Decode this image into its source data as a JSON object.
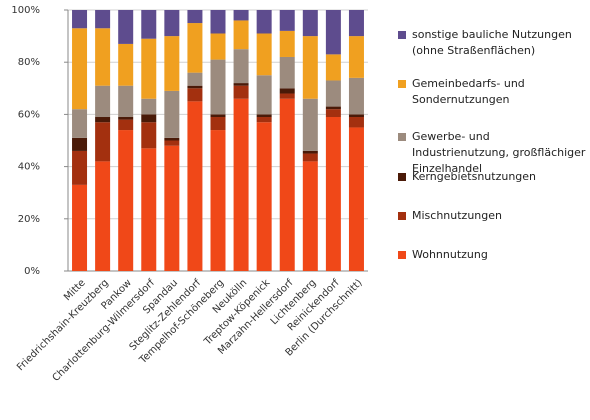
{
  "chart_data": {
    "type": "stacked-bar",
    "categories": [
      "Mitte",
      "Friedrichshain-Kreuzberg",
      "Pankow",
      "Charlottenburg-Wilmersdorf",
      "Spandau",
      "Steglitz-Zehlendorf",
      "Tempelhof-Schöneberg",
      "Neukölln",
      "Treptow-Köpenick",
      "Marzahn-Hellersdorf",
      "Lichtenberg",
      "Reinickendorf",
      "Berlin (Durchschnitt)"
    ],
    "series": [
      {
        "name": "Wohnnutzung",
        "color": "#f04818",
        "values": [
          33,
          42,
          54,
          47,
          48,
          65,
          54,
          66,
          57,
          66,
          42,
          59,
          55
        ]
      },
      {
        "name": "Mischnutzungen",
        "color": "#a3300f",
        "values": [
          13,
          15,
          4,
          10,
          2,
          5,
          5,
          5,
          2,
          2,
          3,
          3,
          4
        ]
      },
      {
        "name": "Kerngebietsnutzungen",
        "color": "#4a1a08",
        "values": [
          5,
          2,
          1,
          3,
          1,
          1,
          1,
          1,
          1,
          2,
          1,
          1,
          1
        ]
      },
      {
        "name": "Gewerbe- und Industrienutzung, großflächiger Einzelhandel",
        "color": "#9c8b7e",
        "values": [
          11,
          12,
          12,
          6,
          18,
          5,
          21,
          13,
          15,
          12,
          20,
          10,
          14
        ]
      },
      {
        "name": "Gemeinbedarfs- und Sondernutzungen",
        "color": "#f0a020",
        "values": [
          31,
          22,
          16,
          23,
          21,
          19,
          10,
          11,
          16,
          10,
          24,
          10,
          16
        ]
      },
      {
        "name": "sonstige bauliche Nutzungen (ohne Straßenflächen)",
        "color": "#5e4c8e",
        "values": [
          7,
          7,
          13,
          11,
          10,
          5,
          9,
          4,
          9,
          8,
          10,
          17,
          10
        ]
      }
    ],
    "ylim": [
      0,
      100
    ],
    "yticks": [
      {
        "value": 0,
        "label": "0%"
      },
      {
        "value": 20,
        "label": "20%"
      },
      {
        "value": 40,
        "label": "40%"
      },
      {
        "value": 60,
        "label": "60%"
      },
      {
        "value": 80,
        "label": "80%"
      },
      {
        "value": 100,
        "label": "100%"
      }
    ],
    "grid": true
  }
}
